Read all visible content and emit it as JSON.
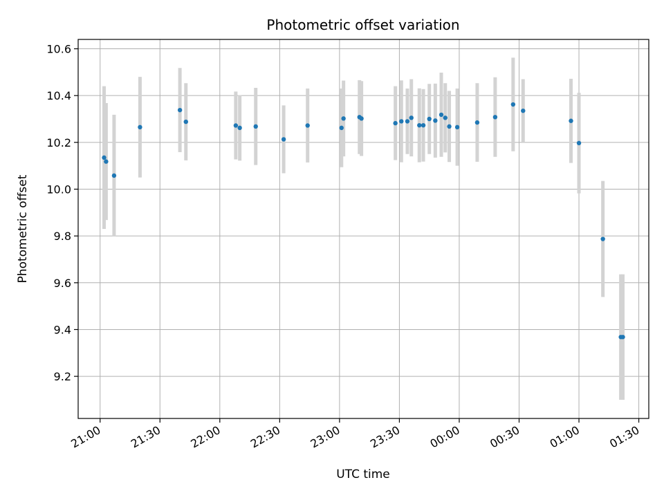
{
  "chart_data": {
    "type": "scatter",
    "title": "Photometric offset variation",
    "xlabel": "UTC time",
    "ylabel": "Photometric offset",
    "xlim": [
      "20:49",
      "01:35"
    ],
    "ylim": [
      9.02,
      10.64
    ],
    "xticks": [
      "21:00",
      "21:30",
      "22:00",
      "22:30",
      "23:00",
      "23:30",
      "00:00",
      "00:30",
      "01:00",
      "01:30"
    ],
    "yticks": [
      "9.2",
      "9.4",
      "9.6",
      "9.8",
      "10.0",
      "10.2",
      "10.4",
      "10.6"
    ],
    "grid": true,
    "point_color": "#1f77b4",
    "errorbar_color": "#d3d3d3",
    "points": [
      {
        "x": "21:02",
        "y": 10.135,
        "err": 0.305
      },
      {
        "x": "21:03",
        "y": 10.118,
        "err": 0.25
      },
      {
        "x": "21:07",
        "y": 10.058,
        "err": 0.26
      },
      {
        "x": "21:20",
        "y": 10.265,
        "err": 0.215
      },
      {
        "x": "21:40",
        "y": 10.338,
        "err": 0.18
      },
      {
        "x": "21:43",
        "y": 10.288,
        "err": 0.165
      },
      {
        "x": "22:08",
        "y": 10.272,
        "err": 0.145
      },
      {
        "x": "22:10",
        "y": 10.262,
        "err": 0.14
      },
      {
        "x": "22:18",
        "y": 10.268,
        "err": 0.165
      },
      {
        "x": "22:32",
        "y": 10.213,
        "err": 0.145
      },
      {
        "x": "22:44",
        "y": 10.272,
        "err": 0.158
      },
      {
        "x": "23:01",
        "y": 10.262,
        "err": 0.168
      },
      {
        "x": "23:02",
        "y": 10.302,
        "err": 0.162
      },
      {
        "x": "23:10",
        "y": 10.308,
        "err": 0.158
      },
      {
        "x": "23:11",
        "y": 10.302,
        "err": 0.16
      },
      {
        "x": "23:28",
        "y": 10.282,
        "err": 0.158
      },
      {
        "x": "23:31",
        "y": 10.29,
        "err": 0.175
      },
      {
        "x": "23:34",
        "y": 10.29,
        "err": 0.14
      },
      {
        "x": "23:36",
        "y": 10.305,
        "err": 0.165
      },
      {
        "x": "23:40",
        "y": 10.273,
        "err": 0.158
      },
      {
        "x": "23:42",
        "y": 10.273,
        "err": 0.155
      },
      {
        "x": "23:45",
        "y": 10.3,
        "err": 0.15
      },
      {
        "x": "23:48",
        "y": 10.293,
        "err": 0.158
      },
      {
        "x": "23:51",
        "y": 10.318,
        "err": 0.18
      },
      {
        "x": "23:53",
        "y": 10.305,
        "err": 0.148
      },
      {
        "x": "23:55",
        "y": 10.268,
        "err": 0.152
      },
      {
        "x": "23:59",
        "y": 10.265,
        "err": 0.165
      },
      {
        "x": "00:09",
        "y": 10.285,
        "err": 0.168
      },
      {
        "x": "00:18",
        "y": 10.308,
        "err": 0.17
      },
      {
        "x": "00:27",
        "y": 10.362,
        "err": 0.2
      },
      {
        "x": "00:32",
        "y": 10.335,
        "err": 0.135
      },
      {
        "x": "00:56",
        "y": 10.292,
        "err": 0.18
      },
      {
        "x": "01:00",
        "y": 10.197,
        "err": 0.215
      },
      {
        "x": "01:12",
        "y": 9.787,
        "err": 0.248
      },
      {
        "x": "01:21",
        "y": 9.368,
        "err": 0.268
      },
      {
        "x": "01:22",
        "y": 9.368,
        "err": 0.268
      }
    ]
  }
}
